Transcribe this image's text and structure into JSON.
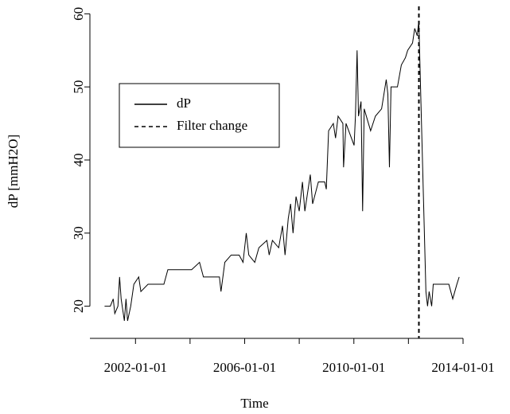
{
  "chart_data": {
    "type": "line",
    "xlabel": "Time",
    "ylabel": "dP [mmH2O]",
    "xlim": [
      "2000-05-01",
      "2014-01-01"
    ],
    "xticks": [
      "2002-01-01",
      "2006-01-01",
      "2010-01-01",
      "2014-01-01"
    ],
    "xminor_ticks": [
      "2004-01-01",
      "2008-01-01",
      "2012-01-01"
    ],
    "ylim": [
      15.6,
      60.8
    ],
    "yticks": [
      20,
      30,
      40,
      50,
      60
    ],
    "grid": false,
    "legend": "upper left",
    "x": [
      "2000-11-13",
      "2001-01-29",
      "2001-03-09",
      "2001-03-30",
      "2001-05-11",
      "2001-06-02",
      "2001-06-23",
      "2001-08-05",
      "2001-08-27",
      "2001-09-17",
      "2001-10-29",
      "2001-12-10",
      "2002-02-13",
      "2002-03-14",
      "2002-06-18",
      "2002-10-02",
      "2003-01-16",
      "2003-03-10",
      "2003-06-22",
      "2003-10-07",
      "2004-01-22",
      "2004-05-07",
      "2004-06-28",
      "2004-10-13",
      "2005-01-28",
      "2005-02-18",
      "2005-04-10",
      "2005-07-04",
      "2005-10-19",
      "2005-12-10",
      "2006-01-22",
      "2006-02-25",
      "2006-05-16",
      "2006-07-10",
      "2006-10-25",
      "2006-11-25",
      "2007-01-07",
      "2007-04-01",
      "2007-05-22",
      "2007-06-25",
      "2007-08-07",
      "2007-09-07",
      "2007-10-10",
      "2007-11-19",
      "2008-01-01",
      "2008-02-13",
      "2008-03-16",
      "2008-05-28",
      "2008-06-28",
      "2008-09-13",
      "2008-12-07",
      "2008-12-28",
      "2009-01-28",
      "2009-04-01",
      "2009-05-01",
      "2009-06-04",
      "2009-08-07",
      "2009-08-16",
      "2009-09-18",
      "2010-01-04",
      "2010-01-22",
      "2010-02-13",
      "2010-03-04",
      "2010-04-07",
      "2010-04-28",
      "2010-05-19",
      "2010-08-13",
      "2010-10-16",
      "2011-01-07",
      "2011-03-10",
      "2011-04-01",
      "2011-04-22",
      "2011-05-13",
      "2011-08-07",
      "2011-09-28",
      "2011-11-22",
      "2011-12-22",
      "2012-02-25",
      "2012-03-25",
      "2012-04-28",
      "2012-05-19",
      "2012-08-22",
      "2012-09-13",
      "2012-10-04",
      "2012-11-07",
      "2012-11-28",
      "2013-03-10",
      "2013-06-25",
      "2013-08-16",
      "2013-10-10",
      "2013-11-10"
    ],
    "series": [
      {
        "name": "dP",
        "color": "#000000",
        "style": "solid",
        "values": [
          20,
          20,
          21,
          19,
          20,
          24,
          21,
          18,
          21,
          18,
          20,
          23,
          24,
          22,
          23,
          23,
          23,
          25,
          25,
          25,
          25,
          26,
          24,
          24,
          24,
          22,
          26,
          27,
          27,
          26,
          30,
          27,
          26,
          28,
          29,
          27,
          29,
          28,
          31,
          27,
          32,
          34,
          30,
          35,
          33,
          37,
          33,
          38,
          34,
          37,
          37,
          36,
          44,
          45,
          43,
          46,
          45,
          39,
          45,
          42,
          46,
          55,
          46,
          48,
          33,
          47,
          44,
          46,
          47,
          51,
          49,
          39,
          50,
          50,
          53,
          54,
          55,
          56,
          58,
          57,
          59,
          22,
          20,
          22,
          20,
          23,
          23,
          23,
          21,
          23,
          24
        ]
      }
    ],
    "markers": [
      {
        "name": "Filter change",
        "x": "2012-05-20",
        "color": "#000000",
        "style": "dashed"
      }
    ]
  }
}
